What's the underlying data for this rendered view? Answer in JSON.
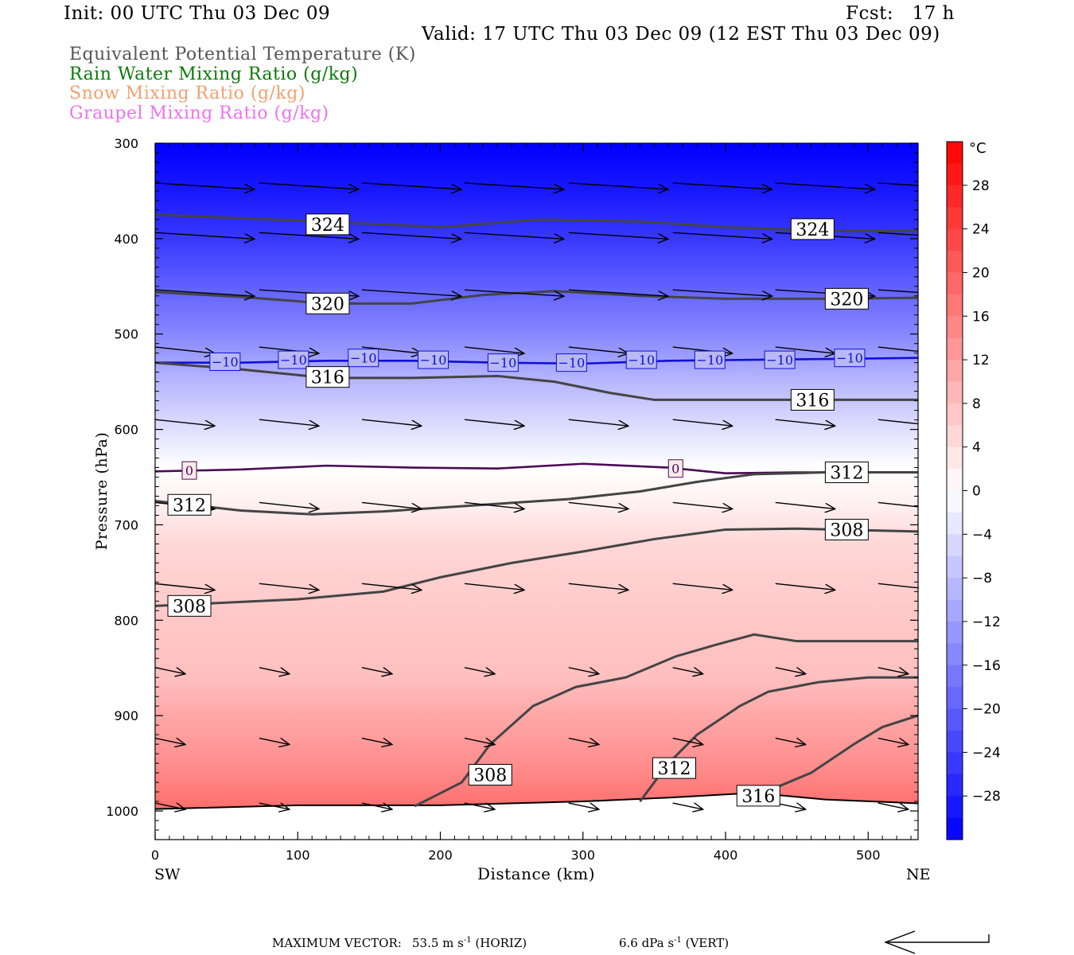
{
  "header": {
    "init": "Init: 00 UTC Thu 03 Dec 09",
    "fcst": "Fcst:   17 h",
    "valid": "Valid: 17 UTC Thu 03 Dec 09 (12 EST Thu 03 Dec 09)"
  },
  "legend": [
    {
      "label": "Equivalent Potential Temperature (K)",
      "color": "#555555"
    },
    {
      "label": "Rain Water Mixing Ratio (g/kg)",
      "color": "#0a7a0a"
    },
    {
      "label": "Snow Mixing Ratio (g/kg)",
      "color": "#f4a070"
    },
    {
      "label": "Graupel Mixing Ratio (g/kg)",
      "color": "#f070f0"
    }
  ],
  "chart_data": {
    "type": "contour cross-section",
    "xlabel": "Distance (km)",
    "ylabel": "Pressure (hPa)",
    "xlim": [
      0,
      535
    ],
    "ylim": [
      1030,
      300
    ],
    "x_ticks": [
      "0",
      "100",
      "200",
      "300",
      "400",
      "500"
    ],
    "y_ticks": [
      "300",
      "400",
      "500",
      "600",
      "700",
      "800",
      "900",
      "1000"
    ],
    "left_end": "SW",
    "right_end": "NE",
    "colorbar": {
      "unit": "°C",
      "range": [
        -32,
        32
      ],
      "tick_labels": [
        "28",
        "24",
        "20",
        "16",
        "12",
        "8",
        "4",
        "0",
        "−4",
        "−8",
        "−12",
        "−16",
        "−20",
        "−24",
        "−28"
      ],
      "tick_values": [
        28,
        24,
        20,
        16,
        12,
        8,
        4,
        0,
        -4,
        -8,
        -12,
        -16,
        -20,
        -24,
        -28
      ]
    },
    "temperature_field": [
      {
        "p": 300,
        "t": -32
      },
      {
        "p": 350,
        "t": -29
      },
      {
        "p": 400,
        "t": -25
      },
      {
        "p": 450,
        "t": -20
      },
      {
        "p": 500,
        "t": -15
      },
      {
        "p": 550,
        "t": -9
      },
      {
        "p": 600,
        "t": -4
      },
      {
        "p": 640,
        "t": 0
      },
      {
        "p": 680,
        "t": 2
      },
      {
        "p": 720,
        "t": 5
      },
      {
        "p": 800,
        "t": 7
      },
      {
        "p": 860,
        "t": 8
      },
      {
        "p": 900,
        "t": 11
      },
      {
        "p": 950,
        "t": 14
      },
      {
        "p": 995,
        "t": 18
      }
    ],
    "theta_e_contours": [
      {
        "label": "324",
        "x": [
          0,
          100,
          200,
          270,
          340,
          400,
          470,
          535
        ],
        "p": [
          375,
          381,
          388,
          380,
          382,
          388,
          392,
          392
        ],
        "label_at": [
          [
            121,
            385
          ],
          [
            461,
            390
          ]
        ]
      },
      {
        "label": "320",
        "x": [
          0,
          60,
          120,
          180,
          230,
          280,
          340,
          400,
          470,
          535
        ],
        "p": [
          456,
          461,
          468,
          468,
          459,
          455,
          460,
          463,
          463,
          462
        ],
        "label_at": [
          [
            121,
            468
          ],
          [
            485,
            463
          ]
        ]
      },
      {
        "label": "316",
        "x": [
          0,
          60,
          120,
          180,
          240,
          280,
          320,
          350,
          400,
          470,
          535
        ],
        "p": [
          530,
          537,
          546,
          546,
          544,
          550,
          562,
          569,
          569,
          569,
          569
        ],
        "label_at": [
          [
            121,
            545
          ],
          [
            461,
            569
          ]
        ]
      },
      {
        "label": "312",
        "x": [
          0,
          60,
          110,
          160,
          220,
          290,
          340,
          380,
          420,
          470,
          535
        ],
        "p": [
          675,
          685,
          689,
          686,
          680,
          673,
          665,
          655,
          647,
          645,
          645
        ],
        "label_at": [
          [
            24,
            679
          ],
          [
            485,
            645
          ]
        ]
      },
      {
        "label": "308",
        "x": [
          0,
          100,
          160,
          200,
          250,
          300,
          350,
          400,
          450,
          535
        ],
        "p": [
          785,
          778,
          770,
          755,
          740,
          728,
          715,
          705,
          704,
          707
        ],
        "label_at": [
          [
            24,
            785
          ],
          [
            485,
            705
          ]
        ]
      },
      {
        "label": "308",
        "x": [
          182,
          215,
          235,
          265,
          295,
          330,
          365,
          395,
          420,
          450,
          535
        ],
        "p": [
          995,
          970,
          930,
          890,
          870,
          860,
          838,
          825,
          815,
          822,
          822
        ],
        "label_at": [
          [
            235,
            962
          ]
        ]
      },
      {
        "label": "312",
        "x": [
          340,
          360,
          380,
          410,
          430,
          465,
          500,
          535
        ],
        "p": [
          990,
          950,
          920,
          890,
          875,
          865,
          860,
          860
        ],
        "label_at": [
          [
            364,
            955
          ]
        ]
      },
      {
        "label": "316",
        "x": [
          420,
          460,
          490,
          510,
          535
        ],
        "p": [
          985,
          960,
          930,
          912,
          900
        ],
        "label_at": [
          [
            423,
            984
          ]
        ]
      }
    ],
    "temperature_contours": [
      {
        "label": "−10",
        "x": [
          0,
          60,
          120,
          180,
          240,
          300,
          360,
          420,
          480,
          535
        ],
        "p": [
          530,
          530,
          528,
          528,
          530,
          531,
          528,
          527,
          526,
          525
        ],
        "label_at": [
          [
            49,
            529
          ],
          [
            97,
            527
          ],
          [
            146,
            525
          ],
          [
            195,
            527
          ],
          [
            244,
            530
          ],
          [
            292,
            530
          ],
          [
            341,
            527
          ],
          [
            389,
            527
          ],
          [
            438,
            527
          ],
          [
            487,
            525
          ]
        ]
      },
      {
        "label": "0",
        "x": [
          0,
          60,
          120,
          180,
          240,
          300,
          360,
          400,
          450,
          535
        ],
        "p": [
          644,
          642,
          638,
          640,
          641,
          636,
          640,
          646,
          645,
          645
        ],
        "label_at": [
          [
            24,
            643
          ],
          [
            365,
            641
          ]
        ]
      }
    ],
    "surface": {
      "x": [
        0,
        100,
        200,
        300,
        360,
        420,
        470,
        535
      ],
      "p": [
        998,
        994,
        994,
        990,
        986,
        981,
        988,
        992
      ]
    },
    "wind_vectors": [
      {
        "p": 345,
        "x": [
          0,
          73,
          145,
          217,
          290,
          363,
          435,
          507
        ]
      },
      {
        "p": 397,
        "x": [
          0,
          73,
          145,
          217,
          290,
          363,
          435,
          507
        ]
      },
      {
        "p": 457,
        "x": [
          0,
          73,
          145,
          217,
          290,
          363,
          435,
          507
        ]
      },
      {
        "p": 517,
        "x": [
          0,
          73,
          145,
          217,
          290,
          363,
          435,
          507
        ]
      },
      {
        "p": 593,
        "x": [
          0,
          73,
          145,
          217,
          290,
          363,
          435,
          507
        ]
      },
      {
        "p": 680,
        "x": [
          0,
          73,
          145,
          217,
          290,
          363,
          435,
          507
        ]
      },
      {
        "p": 765,
        "x": [
          0,
          73,
          145,
          217,
          290,
          363,
          435,
          507
        ]
      },
      {
        "p": 853,
        "x": [
          0,
          73,
          145,
          217,
          290,
          363,
          435,
          507
        ]
      },
      {
        "p": 927,
        "x": [
          0,
          73,
          145,
          217,
          290,
          363,
          435,
          507
        ]
      },
      {
        "p": 995,
        "x": [
          0,
          73,
          145,
          217,
          290,
          363,
          435,
          507
        ]
      }
    ]
  },
  "footer": {
    "max_vector_label": "MAXIMUM VECTOR:",
    "horiz": "53.5 m s",
    "horiz_unit": "(HORIZ)",
    "vert": "6.6 dPa s",
    "vert_unit": "(VERT)",
    "exponent": "-1"
  }
}
